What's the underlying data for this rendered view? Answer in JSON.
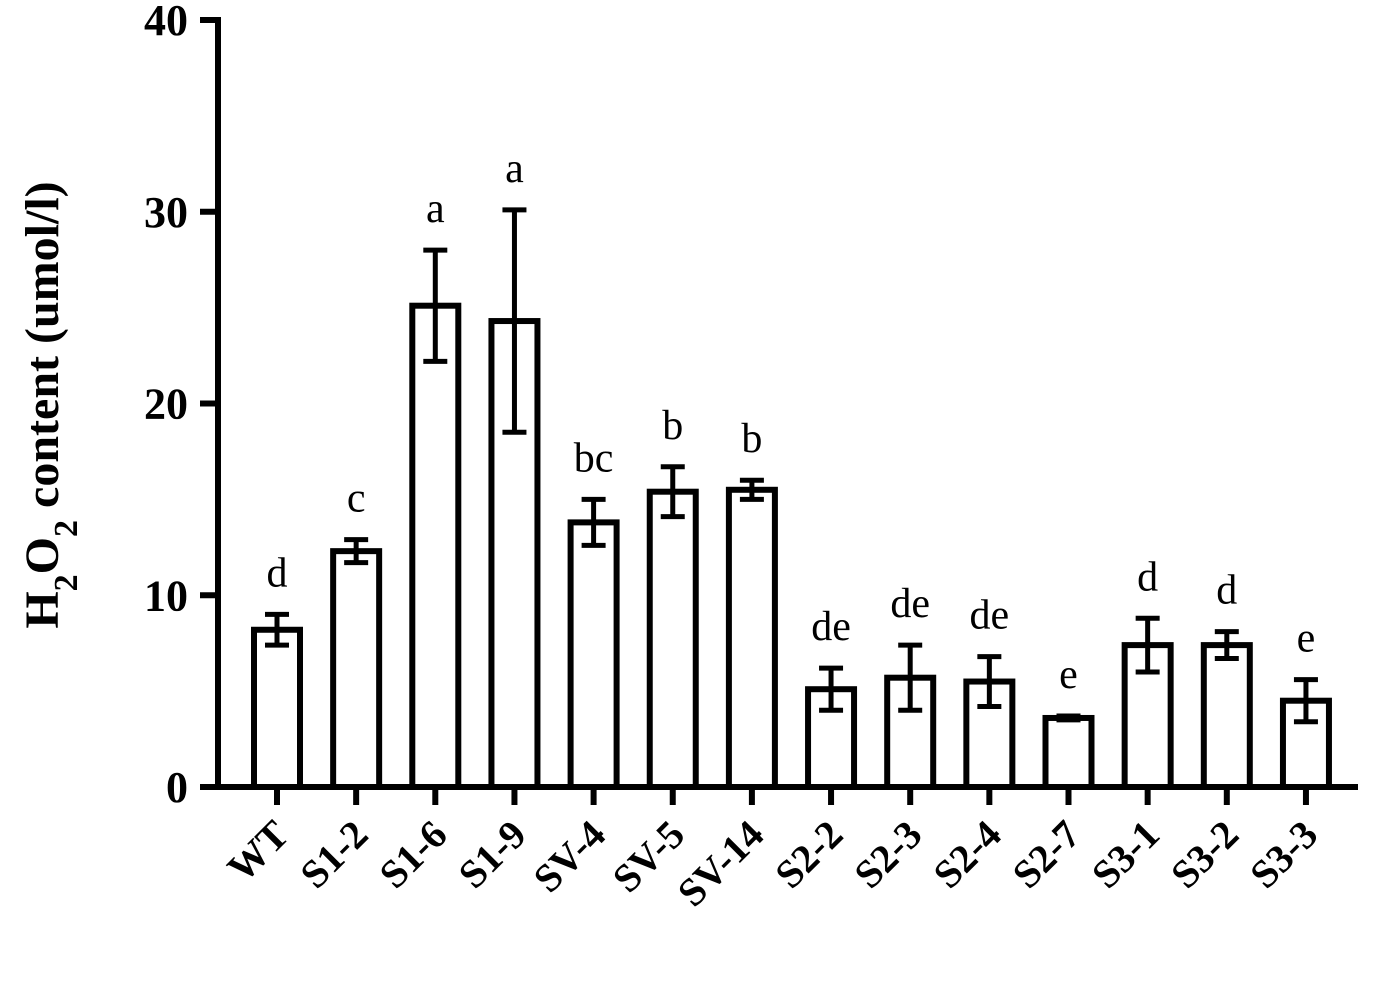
{
  "chart_data": {
    "type": "bar",
    "title": "",
    "xlabel": "",
    "ylabel": {
      "parts": [
        {
          "text": "H",
          "sub": false
        },
        {
          "text": "2",
          "sub": true
        },
        {
          "text": "O",
          "sub": false
        },
        {
          "text": "2",
          "sub": true
        },
        {
          "text": " content (umol/l)",
          "sub": false
        }
      ]
    },
    "ylim": [
      0,
      40
    ],
    "yticks": [
      "0",
      "10",
      "20",
      "30",
      "40"
    ],
    "grid": false,
    "categories": [
      "WT",
      "S1-2",
      "S1-6",
      "S1-9",
      "SV-4",
      "SV-5",
      "SV-14",
      "S2-2",
      "S2-3",
      "S2-4",
      "S2-7",
      "S3-1",
      "S3-2",
      "S3-3"
    ],
    "values": [
      8.2,
      12.3,
      25.1,
      24.3,
      13.8,
      15.4,
      15.5,
      5.1,
      5.7,
      5.5,
      3.6,
      7.4,
      7.4,
      4.5
    ],
    "errors": [
      0.8,
      0.6,
      2.9,
      5.8,
      1.2,
      1.3,
      0.5,
      1.1,
      1.7,
      1.3,
      0.1,
      1.4,
      0.7,
      1.1
    ],
    "significance": [
      "d",
      "c",
      "a",
      "a",
      "bc",
      "b",
      "b",
      "de",
      "de",
      "de",
      "e",
      "d",
      "d",
      "e"
    ]
  }
}
